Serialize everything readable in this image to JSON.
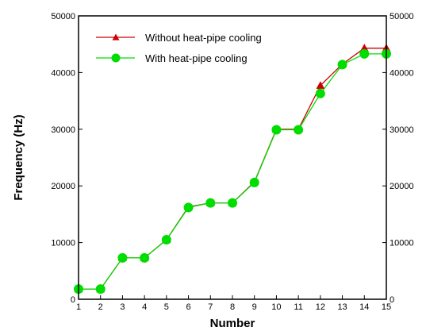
{
  "chart_data": {
    "type": "line",
    "title": "",
    "xlabel": "Number",
    "ylabel": "Frequency (Hz)",
    "xlim": [
      1,
      15
    ],
    "ylim": [
      0,
      50000
    ],
    "x_ticks": [
      "1",
      "2",
      "3",
      "4",
      "5",
      "6",
      "7",
      "8",
      "9",
      "10",
      "11",
      "12",
      "13",
      "14",
      "15"
    ],
    "y_ticks": [
      "0",
      "10000",
      "20000",
      "30000",
      "40000",
      "50000"
    ],
    "right_y_ticks": [
      "0",
      "10000",
      "20000",
      "30000",
      "40000",
      "50000"
    ],
    "grid": false,
    "legend_position": "top-left",
    "x": [
      1,
      2,
      3,
      4,
      5,
      6,
      7,
      8,
      9,
      10,
      11,
      12,
      13,
      14,
      15
    ],
    "series": [
      {
        "name": "Without heat-pipe cooling",
        "color": "#cc0000",
        "marker": "triangle",
        "values": [
          1800,
          1800,
          7300,
          7300,
          10500,
          16300,
          17000,
          17000,
          20700,
          30000,
          30000,
          37700,
          41500,
          44300,
          44300
        ]
      },
      {
        "name": "With heat-pipe cooling",
        "color": "#00dd00",
        "marker": "circle",
        "values": [
          1800,
          1800,
          7300,
          7300,
          10500,
          16200,
          17000,
          17000,
          20600,
          29900,
          29900,
          36300,
          41400,
          43300,
          43300
        ]
      }
    ]
  }
}
